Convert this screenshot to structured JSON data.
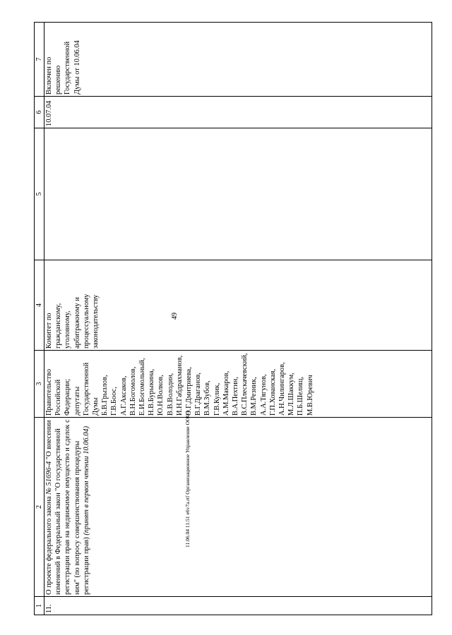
{
  "page_number": "49",
  "footer": "11.06.04 11:51 e6v7a.rtf Организационное Управление ООО3",
  "table": {
    "headers": [
      "1",
      "2",
      "3",
      "4",
      "5",
      "6",
      "7"
    ],
    "row": {
      "number": "11.",
      "title_line1_prefix": "О проекте федерального закона ",
      "title_line1_bill": "№ 51696-4",
      "title_rest": "\"О внесении изменений в Федеральный закон \"О государственной регистрации прав на недвижимое имущество и сделок с ним\" (по вопросу совершенствования процедуры регистрации прав)",
      "title_note": "(принят в первом чтении 10.06.04)",
      "initiators": "Правительство\nРоссийской\nФедерации;\nдепутаты\nГосударственной\nДумы\nБ.В.Грызлов,\nГ.В.Боос,\nА.Г.Аксаков,\nВ.Н.Богомолов,\nЕ.И.Богомольный,\nН.В.Бурыкина,\nЮ.Н.Волков,\nВ.В.Володин,\nИ.Н.Габдрахманов,\nО.Г.Дмитриева,\nВ.Г.Драганов,\nВ.М.Зубов,\nГ.В.Кулик,\nА.М.Макаров,\nВ.А.Пехтин,\nВ.С.Плескачевский,\nВ.М.Резник,\nА.А.Тягунов,\nГ.П.Хованская,\nА.Н.Чилингаров,\nМ.Л.Шаккум,\nП.Б.Шелищ,\nМ.В.Юревич",
      "committee": "Комитет по\nгражданскому,\nуголовному,\nарбитражному и\nпроцессуальному\nзаконодательству",
      "col5": "",
      "date": "10.07.04",
      "decision": "Включен по\nрешению\nГосударственной\nДумы от 10.06.04"
    }
  }
}
